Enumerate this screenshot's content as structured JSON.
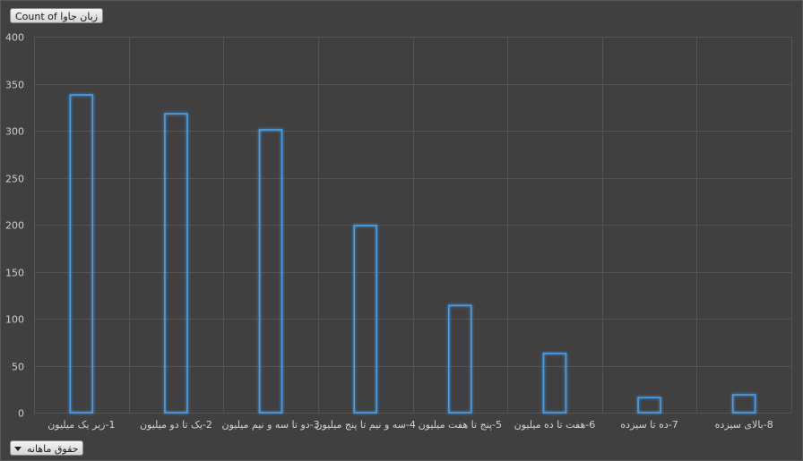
{
  "filter_buttons": {
    "value_field": "Count of زبان جاوا",
    "axis_field": "حقوق ماهانه"
  },
  "icons": {
    "axis_dropdown": "chevron-down-icon"
  },
  "colors": {
    "background": "#404040",
    "bar_outline": "#4a9ee8",
    "bar_glow": "#2f7fd0",
    "gridline": "#555555",
    "tick_text": "#d0d0d0"
  },
  "chart_data": {
    "type": "bar",
    "title": "",
    "xlabel": "",
    "ylabel": "",
    "categories": [
      "1-زیر یک میلیون",
      "2-یک تا دو میلیون",
      "3-دو تا سه و نیم میلیون",
      "4-سه و نیم تا پنج میلیون",
      "5-پنج تا هفت میلیون",
      "6-هفت تا ده میلیون",
      "7-ده تا سیزده",
      "8-بالای سیزده"
    ],
    "values": [
      338,
      318,
      301,
      199,
      114,
      63,
      16,
      19
    ],
    "ylim": [
      0,
      400
    ],
    "yticks": [
      0,
      50,
      100,
      150,
      200,
      250,
      300,
      350,
      400
    ],
    "grid": true,
    "legend": "none"
  }
}
